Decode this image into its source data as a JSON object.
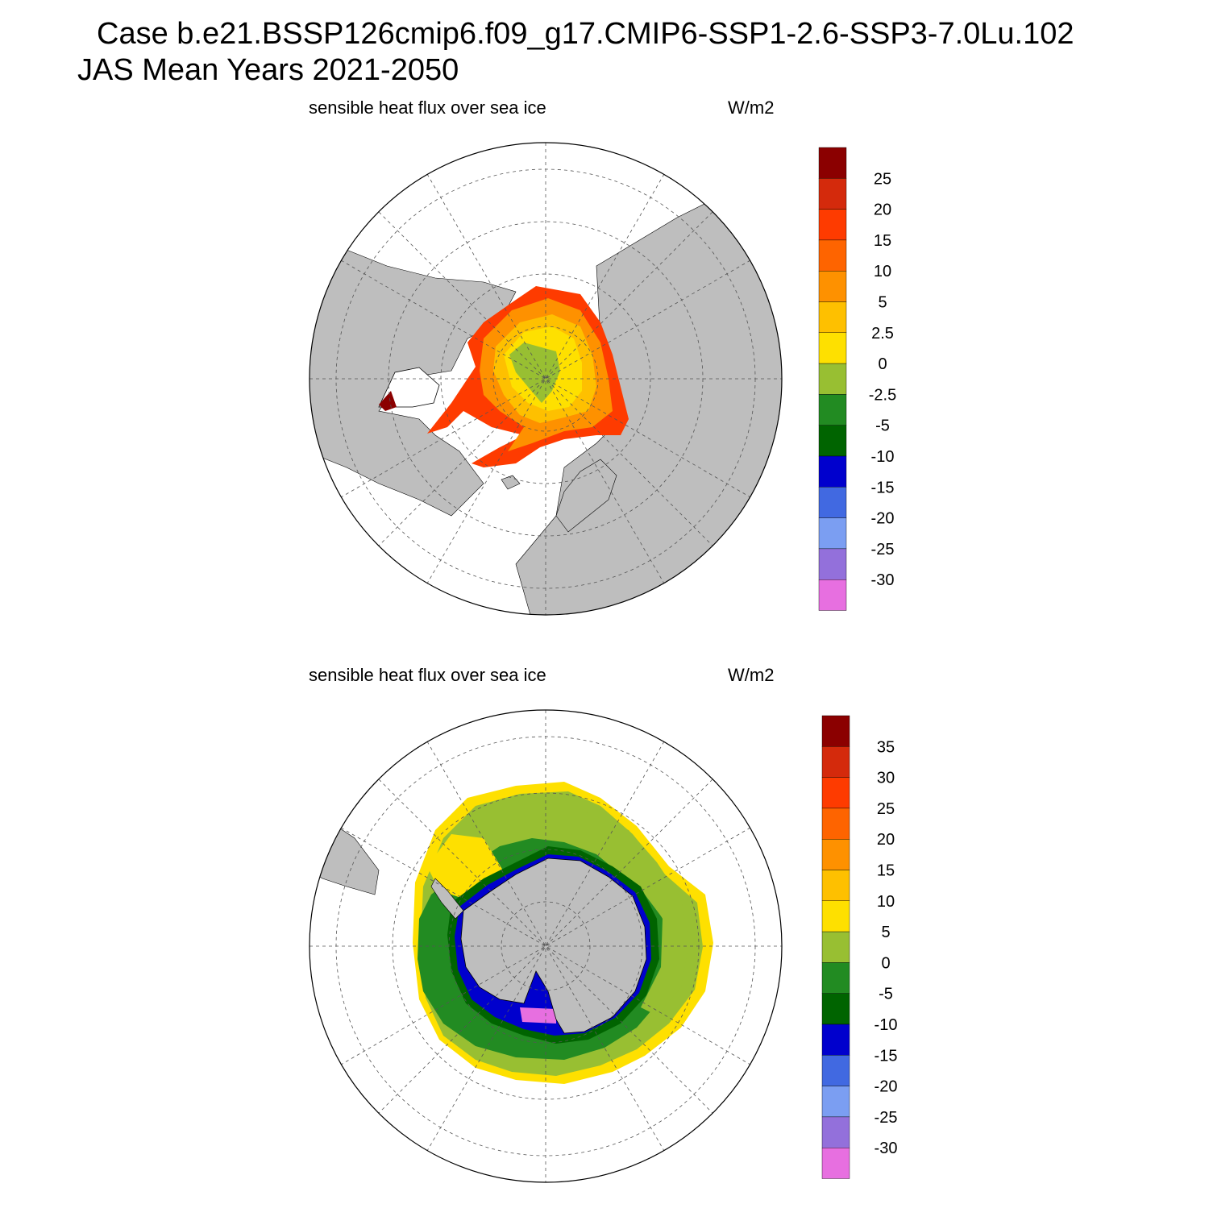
{
  "title": {
    "line1": "Case b.e21.BSSP126cmip6.f09_g17.CMIP6-SSP1-2.6-SSP3-7.0Lu.102",
    "line2": "JAS Mean   Years 2021-2050"
  },
  "panels": [
    {
      "id": "north",
      "hemisphere": "Northern Hemisphere",
      "field_label": "sensible heat flux over sea ice",
      "units_label": "W/m2",
      "colorbar": {
        "colors": [
          "#8b0000",
          "#d42a0c",
          "#fe3b00",
          "#fe6400",
          "#fe9100",
          "#fec000",
          "#fee000",
          "#98bf32",
          "#228b22",
          "#006400",
          "#0000cd",
          "#4169e1",
          "#7b9ef2",
          "#9370db",
          "#e76fe0"
        ],
        "labels": [
          "25",
          "20",
          "15",
          "10",
          "5",
          "2.5",
          "0",
          "-2.5",
          "-5",
          "-10",
          "-15",
          "-20",
          "-25",
          "-30"
        ]
      }
    },
    {
      "id": "south",
      "hemisphere": "Southern Hemisphere",
      "field_label": "sensible heat flux over sea ice",
      "units_label": "W/m2",
      "colorbar": {
        "colors": [
          "#8b0000",
          "#d42a0c",
          "#fe3b00",
          "#fe6400",
          "#fe9100",
          "#fec000",
          "#fee000",
          "#98bf32",
          "#228b22",
          "#006400",
          "#0000cd",
          "#4169e1",
          "#7b9ef2",
          "#9370db",
          "#e76fe0"
        ],
        "labels": [
          "35",
          "30",
          "25",
          "20",
          "15",
          "10",
          "5",
          "0",
          "-5",
          "-10",
          "-15",
          "-20",
          "-25",
          "-30"
        ]
      }
    }
  ],
  "colors": {
    "land": "#bebebe",
    "ocean": "#ffffff",
    "grid": "#555555"
  }
}
